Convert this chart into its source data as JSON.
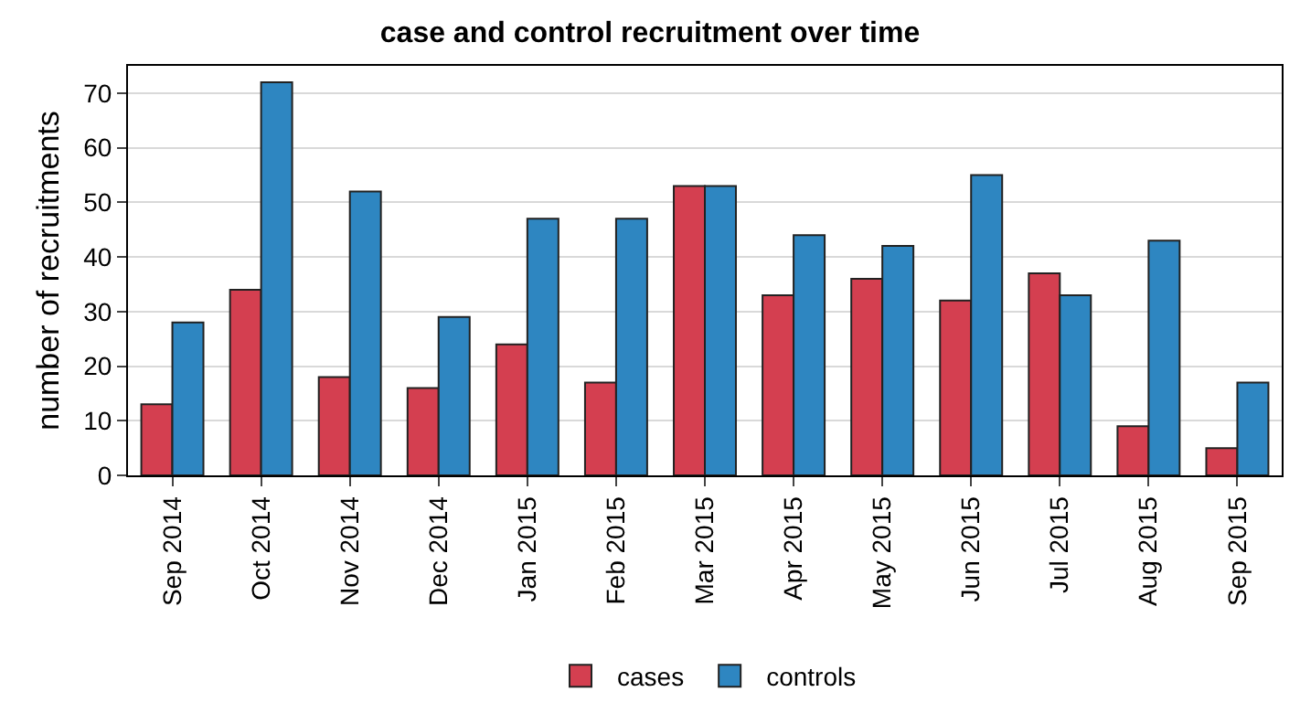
{
  "chart_data": {
    "type": "bar",
    "title": "case and control recruitment over time",
    "ylabel": "number of recruitments",
    "categories": [
      "Sep 2014",
      "Oct 2014",
      "Nov 2014",
      "Dec 2014",
      "Jan 2015",
      "Feb 2015",
      "Mar 2015",
      "Apr 2015",
      "May 2015",
      "Jun 2015",
      "Jul 2015",
      "Aug 2015",
      "Sep 2015"
    ],
    "series": [
      {
        "name": "cases",
        "color": "#d43f50",
        "values": [
          13,
          34,
          18,
          16,
          24,
          17,
          53,
          33,
          36,
          32,
          37,
          9,
          5
        ]
      },
      {
        "name": "controls",
        "color": "#2e86c1",
        "values": [
          28,
          72,
          52,
          29,
          47,
          47,
          53,
          44,
          42,
          55,
          33,
          43,
          17
        ]
      }
    ],
    "ylim": [
      0,
      75
    ],
    "yticks": [
      0,
      10,
      20,
      30,
      40,
      50,
      60,
      70
    ],
    "grid": "y",
    "legend": "bottom"
  }
}
